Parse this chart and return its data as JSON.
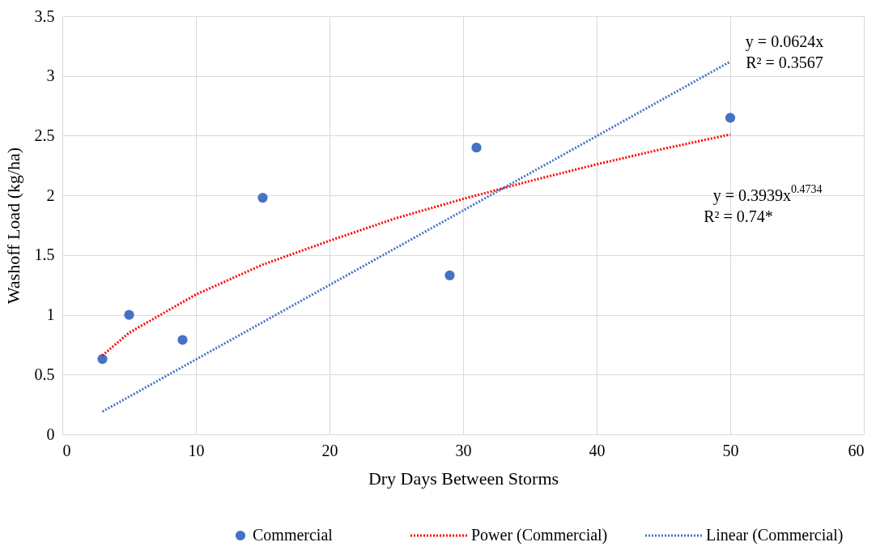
{
  "chart_data": {
    "type": "scatter",
    "xlabel": "Dry Days Between Storms",
    "ylabel": "Washoff Load (kg/ha)",
    "xlim": [
      0,
      60
    ],
    "xticks": [
      0,
      10,
      20,
      30,
      40,
      50,
      60
    ],
    "ylim": [
      0,
      3.5
    ],
    "yticks": [
      0,
      0.5,
      1,
      1.5,
      2,
      2.5,
      3,
      3.5
    ],
    "grid": true,
    "legend": "bottom",
    "series": [
      {
        "name": "Commercial",
        "marker": "circle",
        "color": "#4472c4",
        "x": [
          3,
          5,
          9,
          15,
          29,
          31,
          50
        ],
        "values": [
          0.63,
          1.0,
          0.79,
          1.98,
          1.33,
          2.4,
          2.65
        ]
      },
      {
        "name": "Power (Commercial)",
        "type": "line",
        "line_style": "dotted",
        "color": "#ff0000",
        "x": [
          3,
          5,
          10,
          15,
          20,
          25,
          30,
          35,
          40,
          45,
          50
        ],
        "values": [
          0.66,
          0.85,
          1.17,
          1.42,
          1.62,
          1.81,
          1.97,
          2.12,
          2.26,
          2.39,
          2.51
        ]
      },
      {
        "name": "Linear (Commercial)",
        "type": "line",
        "line_style": "dotted",
        "color": "#4472c4",
        "x": [
          3,
          50
        ],
        "values": [
          0.19,
          3.12
        ]
      }
    ],
    "annotations": [
      "y = 0.0624x",
      "R² = 0.3567",
      "y = 0.3939x$^{0.4734}$",
      "R² = 0.74*"
    ]
  }
}
